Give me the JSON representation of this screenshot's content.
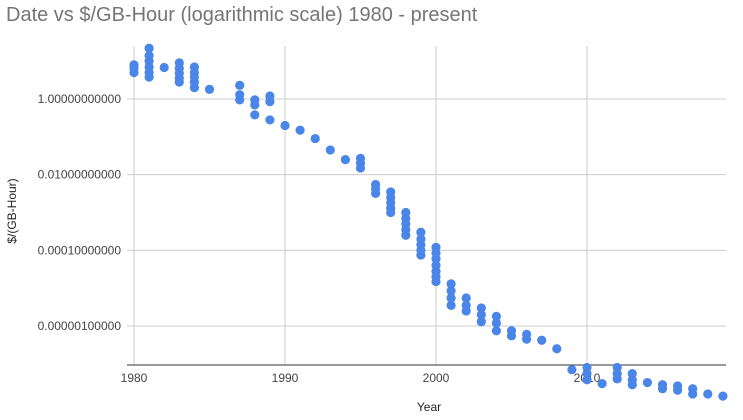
{
  "chart_data": {
    "type": "scatter",
    "title": "Date vs $/GB-Hour (logarithmic scale) 1980 - present",
    "xlabel": "Year",
    "ylabel": "$/(GB-Hour)",
    "x_ticks": [
      "1980",
      "1990",
      "2000",
      "2010"
    ],
    "y_ticks": [
      "1.00000000000",
      "0.01000000000",
      "0.00010000000",
      "0.00000100000"
    ],
    "y_scale": "log",
    "xlim": [
      1980,
      2019
    ],
    "ylim": [
      1e-08,
      25
    ],
    "grid": true,
    "legend": "none",
    "color": "#4a86e8",
    "points": [
      [
        1980,
        8.0
      ],
      [
        1980,
        6.5
      ],
      [
        1980,
        5.0
      ],
      [
        1981,
        22.0
      ],
      [
        1981,
        14.0
      ],
      [
        1981,
        10.0
      ],
      [
        1981,
        7.0
      ],
      [
        1981,
        5.0
      ],
      [
        1981,
        3.8
      ],
      [
        1982,
        6.8
      ],
      [
        1983,
        9.0
      ],
      [
        1983,
        6.5
      ],
      [
        1983,
        4.8
      ],
      [
        1983,
        3.6
      ],
      [
        1983,
        2.8
      ],
      [
        1984,
        7.0
      ],
      [
        1984,
        5.0
      ],
      [
        1984,
        3.8
      ],
      [
        1984,
        2.8
      ],
      [
        1984,
        2.0
      ],
      [
        1985,
        1.8
      ],
      [
        1987,
        2.3
      ],
      [
        1987,
        1.3
      ],
      [
        1987,
        0.95
      ],
      [
        1988,
        0.95
      ],
      [
        1988,
        0.7
      ],
      [
        1988,
        0.38
      ],
      [
        1989,
        1.2
      ],
      [
        1989,
        0.85
      ],
      [
        1989,
        0.28
      ],
      [
        1990,
        0.2
      ],
      [
        1991,
        0.15
      ],
      [
        1992,
        0.09
      ],
      [
        1993,
        0.045
      ],
      [
        1994,
        0.025
      ],
      [
        1995,
        0.027
      ],
      [
        1995,
        0.02
      ],
      [
        1995,
        0.015
      ],
      [
        1996,
        0.0055
      ],
      [
        1996,
        0.0042
      ],
      [
        1996,
        0.0032
      ],
      [
        1997,
        0.0035
      ],
      [
        1997,
        0.0025
      ],
      [
        1997,
        0.0018
      ],
      [
        1997,
        0.0013
      ],
      [
        1997,
        0.001
      ],
      [
        1998,
        0.001
      ],
      [
        1998,
        0.0007
      ],
      [
        1998,
        0.0005
      ],
      [
        1998,
        0.00035
      ],
      [
        1998,
        0.00025
      ],
      [
        1999,
        0.0003
      ],
      [
        1999,
        0.0002
      ],
      [
        1999,
        0.00014
      ],
      [
        1999,
        0.0001
      ],
      [
        1999,
        7.5e-05
      ],
      [
        2000,
        0.00012
      ],
      [
        2000,
        8.5e-05
      ],
      [
        2000,
        6e-05
      ],
      [
        2000,
        4e-05
      ],
      [
        2000,
        2.8e-05
      ],
      [
        2000,
        2e-05
      ],
      [
        2000,
        1.5e-05
      ],
      [
        2001,
        1.3e-05
      ],
      [
        2001,
        8.5e-06
      ],
      [
        2001,
        5.5e-06
      ],
      [
        2001,
        3.5e-06
      ],
      [
        2002,
        5.5e-06
      ],
      [
        2002,
        3.5e-06
      ],
      [
        2002,
        2.5e-06
      ],
      [
        2003,
        3e-06
      ],
      [
        2003,
        2e-06
      ],
      [
        2003,
        1.3e-06
      ],
      [
        2004,
        1.8e-06
      ],
      [
        2004,
        1.2e-06
      ],
      [
        2004,
        7.5e-07
      ],
      [
        2005,
        7.5e-07
      ],
      [
        2005,
        5.5e-07
      ],
      [
        2006,
        6e-07
      ],
      [
        2006,
        4.5e-07
      ],
      [
        2007,
        4.2e-07
      ],
      [
        2008,
        2.5e-07
      ],
      [
        2009,
        7e-08
      ],
      [
        2010,
        8e-08
      ],
      [
        2010,
        5.5e-08
      ],
      [
        2010,
        3.8e-08
      ],
      [
        2011,
        3e-08
      ],
      [
        2012,
        8e-08
      ],
      [
        2012,
        5.5e-08
      ],
      [
        2012,
        4e-08
      ],
      [
        2013,
        5.5e-08
      ],
      [
        2013,
        3.8e-08
      ],
      [
        2013,
        2.8e-08
      ],
      [
        2014,
        3.2e-08
      ],
      [
        2015,
        2.8e-08
      ],
      [
        2015,
        2.2e-08
      ],
      [
        2016,
        2.6e-08
      ],
      [
        2016,
        2e-08
      ],
      [
        2017,
        2.2e-08
      ],
      [
        2017,
        1.6e-08
      ],
      [
        2018,
        1.6e-08
      ],
      [
        2019,
        1.4e-08
      ]
    ]
  }
}
